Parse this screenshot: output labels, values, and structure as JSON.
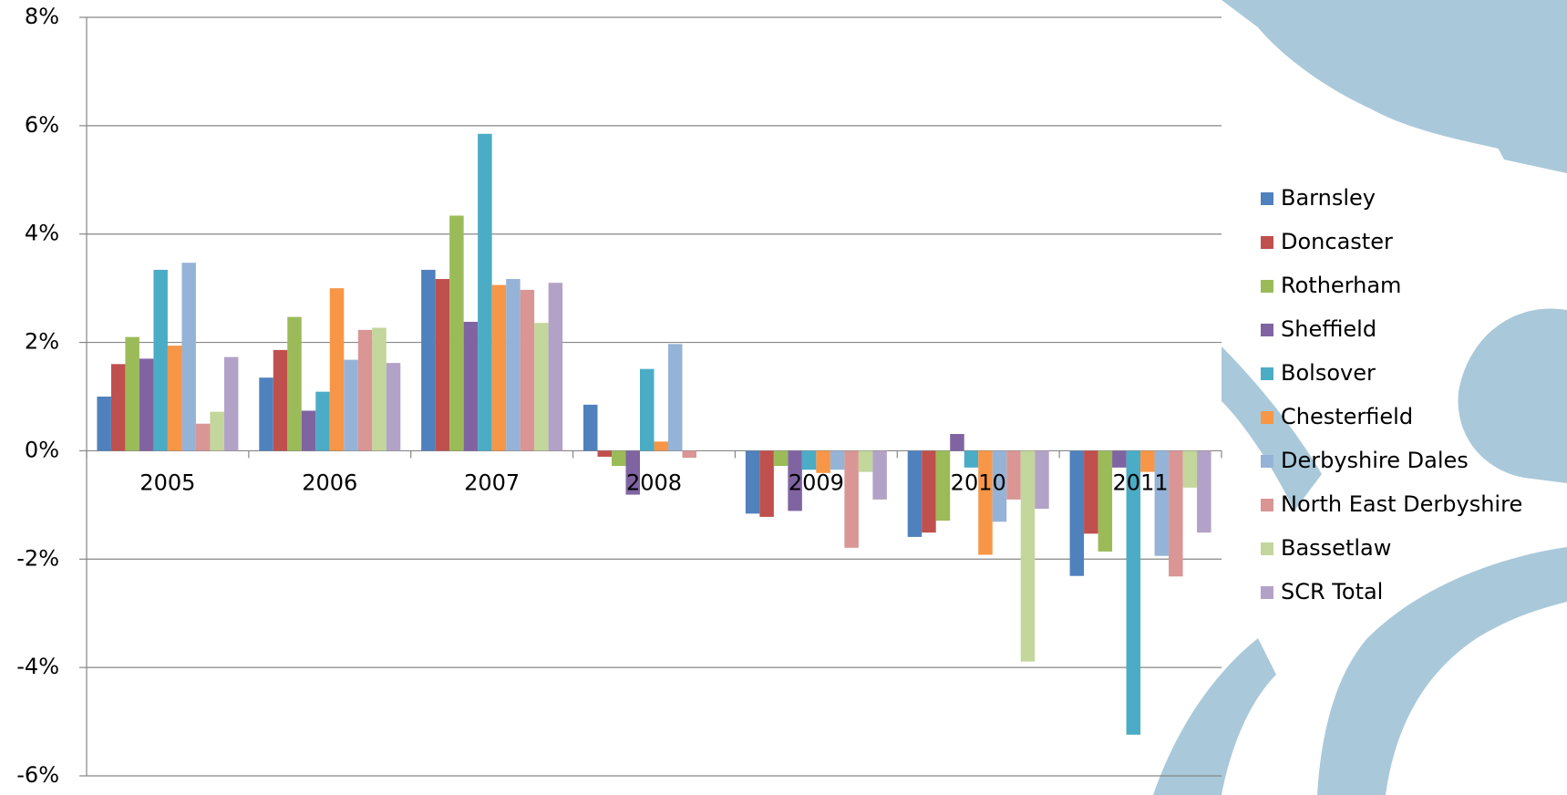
{
  "chart_data": {
    "type": "bar",
    "categories": [
      "2005",
      "2006",
      "2007",
      "2008",
      "2009",
      "2010",
      "2011"
    ],
    "series": [
      {
        "name": "Barnsley",
        "color": "#4f81bd",
        "values": [
          1.0,
          1.35,
          3.34,
          0.85,
          -1.16,
          -1.59,
          -2.31
        ]
      },
      {
        "name": "Doncaster",
        "color": "#c0504d",
        "values": [
          1.6,
          1.86,
          3.17,
          -0.11,
          -1.22,
          -1.51,
          -1.53
        ]
      },
      {
        "name": "Rotherham",
        "color": "#9bbb59",
        "values": [
          2.1,
          2.47,
          4.34,
          -0.28,
          -0.28,
          -1.29,
          -1.86
        ]
      },
      {
        "name": "Sheffield",
        "color": "#8064a2",
        "values": [
          1.7,
          0.74,
          2.38,
          -0.81,
          -1.11,
          0.31,
          -0.31
        ]
      },
      {
        "name": "Bolsover",
        "color": "#4bacc6",
        "values": [
          3.34,
          1.09,
          5.85,
          1.51,
          -0.35,
          -0.31,
          -5.24
        ]
      },
      {
        "name": "Chesterfield",
        "color": "#f79646",
        "values": [
          1.94,
          3.0,
          3.06,
          0.17,
          -0.41,
          -1.92,
          -0.39
        ]
      },
      {
        "name": "Derbyshire Dales",
        "color": "#95b3d7",
        "values": [
          3.47,
          1.68,
          3.17,
          1.97,
          -0.35,
          -1.31,
          -1.94
        ]
      },
      {
        "name": "North East Derbyshire",
        "color": "#d99694",
        "values": [
          0.5,
          2.23,
          2.97,
          -0.13,
          -1.79,
          -0.9,
          -2.32
        ]
      },
      {
        "name": "Bassetlaw",
        "color": "#c3d69b",
        "values": [
          0.72,
          2.27,
          2.36,
          0,
          -0.39,
          -3.89,
          -0.68
        ]
      },
      {
        "name": "SCR Total",
        "color": "#b3a2c7",
        "values": [
          1.73,
          1.62,
          3.1,
          0,
          -0.9,
          -1.07,
          -1.51
        ]
      }
    ],
    "ylim": [
      -6,
      8
    ],
    "yticks": [
      {
        "value": -6,
        "label": "-6%"
      },
      {
        "value": -4,
        "label": "-4%"
      },
      {
        "value": -2,
        "label": "-2%"
      },
      {
        "value": 0,
        "label": "0%"
      },
      {
        "value": 2,
        "label": "2%"
      },
      {
        "value": 4,
        "label": "4%"
      },
      {
        "value": 6,
        "label": "6%"
      },
      {
        "value": 8,
        "label": "8%"
      }
    ],
    "grid": true,
    "legend": "right"
  }
}
